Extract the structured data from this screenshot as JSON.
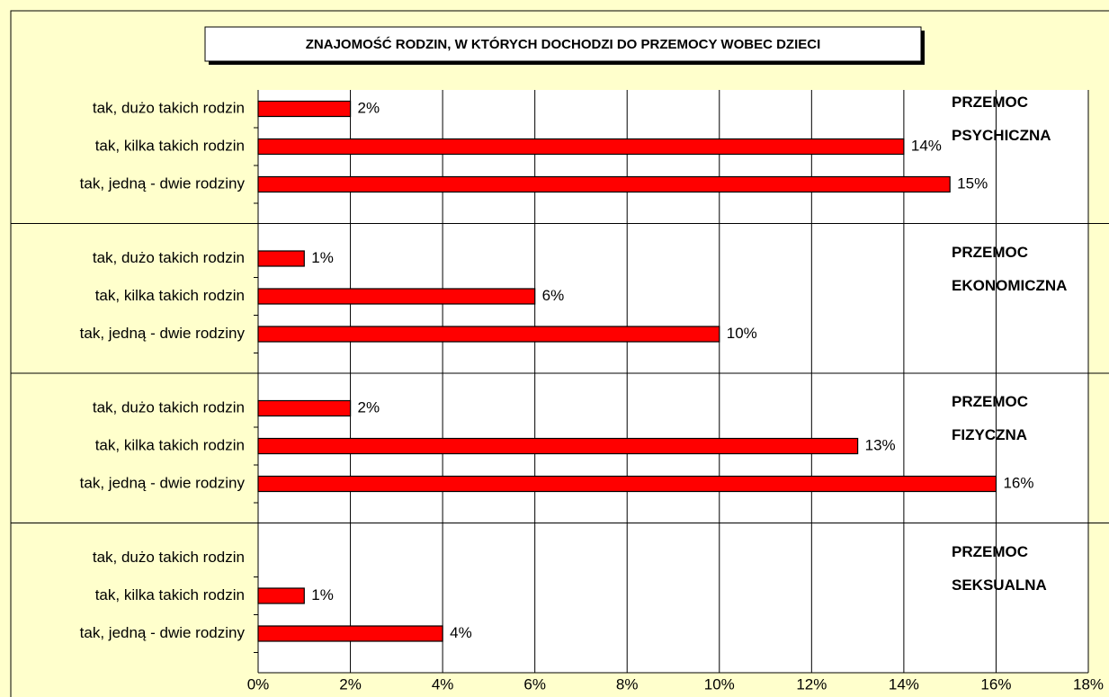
{
  "chart_data": {
    "type": "bar",
    "orientation": "horizontal",
    "title": "ZNAJOMOŚĆ RODZIN, W KTÓRYCH DOCHODZI DO PRZEMOCY WOBEC DZIECI",
    "color": "#ff0000",
    "grid": true,
    "xlim": [
      0,
      18
    ],
    "xticks": [
      {
        "value": 0,
        "label": "0%"
      },
      {
        "value": 2,
        "label": "2%"
      },
      {
        "value": 4,
        "label": "4%"
      },
      {
        "value": 6,
        "label": "6%"
      },
      {
        "value": 8,
        "label": "8%"
      },
      {
        "value": 10,
        "label": "10%"
      },
      {
        "value": 12,
        "label": "12%"
      },
      {
        "value": 14,
        "label": "14%"
      },
      {
        "value": 16,
        "label": "16%"
      },
      {
        "value": 18,
        "label": "18%"
      }
    ],
    "groups": [
      {
        "name": "PRZEMOC PSYCHICZNA",
        "categories": [
          "tak, dużo takich rodzin",
          "tak, kilka takich rodzin",
          "tak, jedną - dwie rodziny"
        ],
        "values": [
          2,
          14,
          15
        ],
        "value_labels": [
          "2%",
          "14%",
          "15%"
        ]
      },
      {
        "name": "PRZEMOC EKONOMICZNA",
        "categories": [
          "tak, dużo takich rodzin",
          "tak, kilka takich rodzin",
          "tak, jedną - dwie rodziny"
        ],
        "values": [
          1,
          6,
          10
        ],
        "value_labels": [
          "1%",
          "6%",
          "10%"
        ]
      },
      {
        "name": "PRZEMOC FIZYCZNA",
        "categories": [
          "tak, dużo takich rodzin",
          "tak, kilka takich rodzin",
          "tak, jedną - dwie rodziny"
        ],
        "values": [
          2,
          13,
          16
        ],
        "value_labels": [
          "2%",
          "13%",
          "16%"
        ]
      },
      {
        "name": "PRZEMOC SEKSUALNA",
        "categories": [
          "tak, dużo takich rodzin",
          "tak, kilka takich rodzin",
          "tak, jedną - dwie rodziny"
        ],
        "values": [
          null,
          1,
          4
        ],
        "value_labels": [
          null,
          "1%",
          "4%"
        ]
      }
    ]
  }
}
